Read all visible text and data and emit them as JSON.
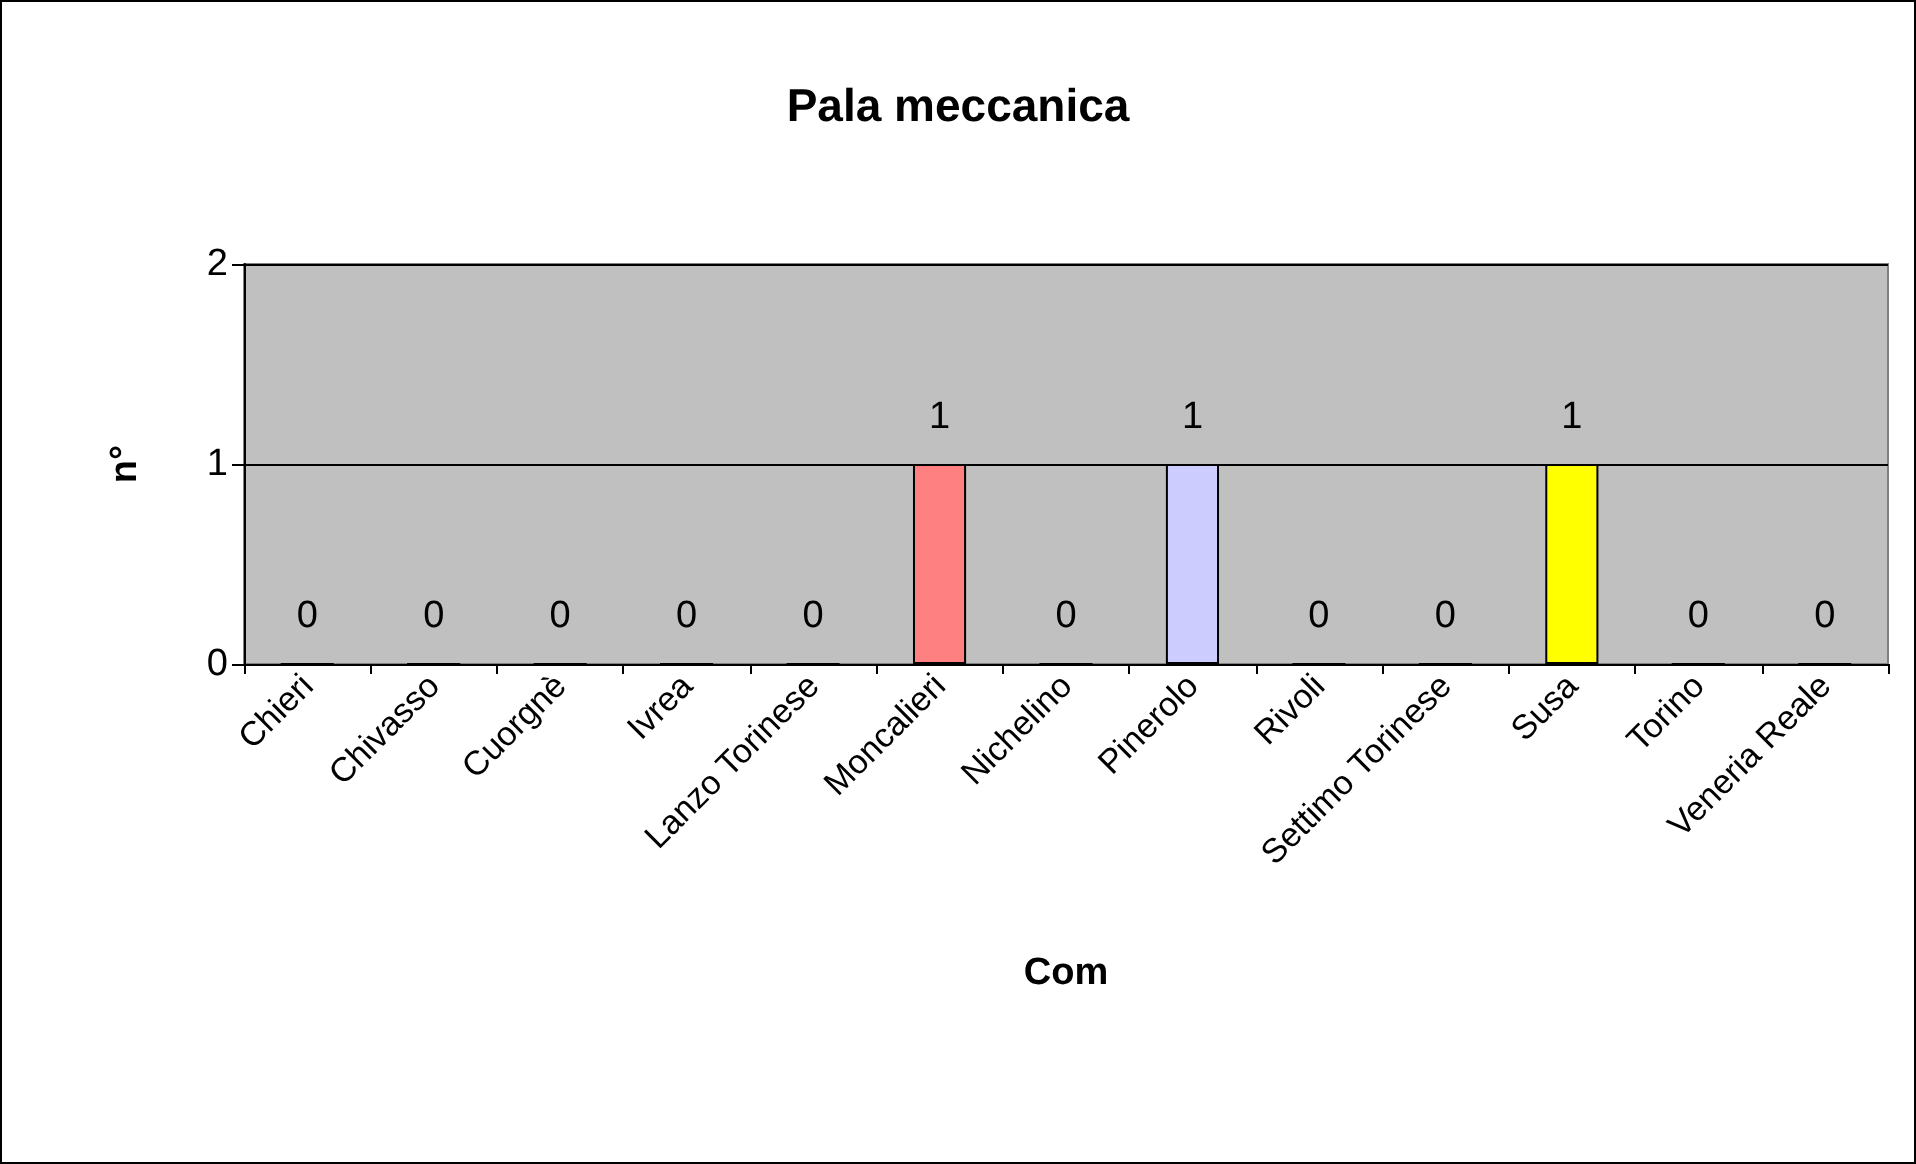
{
  "chart_data": {
    "type": "bar",
    "title": "Pala meccanica",
    "xlabel": "Com",
    "ylabel": "n°",
    "categories": [
      "Chieri",
      "Chivasso",
      "Cuorgnè",
      "Ivrea",
      "Lanzo Torinese",
      "Moncalieri",
      "Nichelino",
      "Pinerolo",
      "Rivoli",
      "Settimo Torinese",
      "Susa",
      "Torino",
      "Veneria Reale"
    ],
    "values": [
      0,
      0,
      0,
      0,
      0,
      1,
      0,
      1,
      0,
      0,
      1,
      0,
      0
    ],
    "colors": [
      "#000000",
      "#000000",
      "#000000",
      "#000000",
      "#000000",
      "#ff8080",
      "#000000",
      "#ccccff",
      "#000000",
      "#000000",
      "#ffff00",
      "#000000",
      "#000000"
    ],
    "ylim": [
      0,
      2
    ],
    "yticks": [
      0,
      1,
      2
    ],
    "grid": "y",
    "data_labels": true
  }
}
